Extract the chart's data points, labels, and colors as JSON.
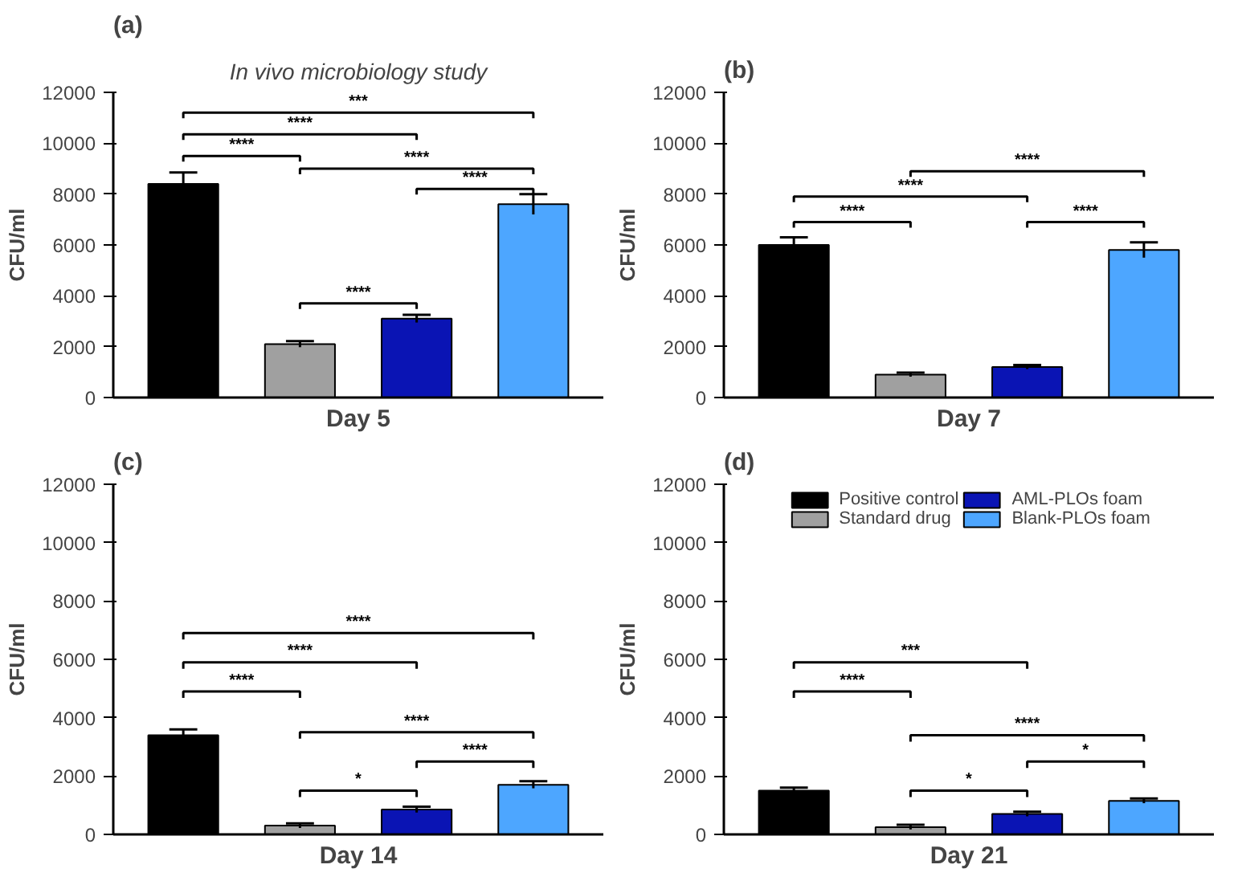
{
  "chart_data": [
    {
      "type": "bar",
      "title": "(a)",
      "subtitle": "In vivo microbiology study",
      "xlabel": "Day 5",
      "ylabel": "CFU/ml",
      "categories": [
        null,
        null,
        null,
        null
      ],
      "series": [
        {
          "color": "#000000",
          "values": [
            8400,
            null,
            null,
            null
          ],
          "errors": [
            450,
            null,
            null,
            null
          ]
        },
        {
          "color": "#a0a0a0",
          "values": [
            null,
            2100,
            null,
            null
          ],
          "errors": [
            null,
            120,
            null,
            null
          ]
        },
        {
          "color": "#0a14b4",
          "values": [
            null,
            null,
            3100,
            null
          ],
          "errors": [
            null,
            null,
            150,
            null
          ]
        },
        {
          "color": "#4da6ff",
          "values": [
            null,
            null,
            null,
            7600
          ],
          "errors": [
            null,
            null,
            null,
            400
          ]
        }
      ],
      "stacked": true,
      "tick_labels": "y",
      "ylim": [
        0,
        12000
      ],
      "yticks": [
        0,
        2000,
        4000,
        6000,
        8000,
        10000,
        12000
      ],
      "grid": false,
      "legend": false,
      "annotations": [
        "***",
        "****",
        "****",
        "****",
        "****",
        "****"
      ]
    },
    {
      "type": "bar",
      "title": "(b)",
      "xlabel": "Day 7",
      "ylabel": "CFU/ml",
      "categories": [
        null,
        null,
        null,
        null
      ],
      "series": [
        {
          "color": "#000000",
          "values": [
            6000,
            null,
            null,
            null
          ],
          "errors": [
            300,
            null,
            null,
            null
          ]
        },
        {
          "color": "#a0a0a0",
          "values": [
            null,
            900,
            null,
            null
          ],
          "errors": [
            null,
            80,
            null,
            null
          ]
        },
        {
          "color": "#0a14b4",
          "values": [
            null,
            null,
            1200,
            null
          ],
          "errors": [
            null,
            null,
            80,
            null
          ]
        },
        {
          "color": "#4da6ff",
          "values": [
            null,
            null,
            null,
            5800
          ],
          "errors": [
            null,
            null,
            null,
            300
          ]
        }
      ],
      "stacked": true,
      "tick_labels": "y",
      "ylim": [
        0,
        12000
      ],
      "yticks": [
        0,
        2000,
        4000,
        6000,
        8000,
        10000,
        12000
      ],
      "grid": false,
      "legend": false,
      "annotations": [
        "****",
        "****",
        "****",
        "****"
      ]
    },
    {
      "type": "bar",
      "title": "(c)",
      "xlabel": "Day 14",
      "ylabel": "CFU/ml",
      "categories": [
        null,
        null,
        null,
        null
      ],
      "series": [
        {
          "color": "#000000",
          "values": [
            3400,
            null,
            null,
            null
          ],
          "errors": [
            200,
            null,
            null,
            null
          ]
        },
        {
          "color": "#a0a0a0",
          "values": [
            null,
            300,
            null,
            null
          ],
          "errors": [
            null,
            80,
            null,
            null
          ]
        },
        {
          "color": "#0a14b4",
          "values": [
            null,
            null,
            850,
            null
          ],
          "errors": [
            null,
            null,
            100,
            null
          ]
        },
        {
          "color": "#4da6ff",
          "values": [
            null,
            null,
            null,
            1700
          ],
          "errors": [
            null,
            null,
            null,
            120
          ]
        }
      ],
      "stacked": true,
      "tick_labels": "y",
      "ylim": [
        0,
        12000
      ],
      "yticks": [
        0,
        2000,
        4000,
        6000,
        8000,
        10000,
        12000
      ],
      "grid": false,
      "legend": false,
      "annotations": [
        "****",
        "****",
        "****",
        "****",
        "****",
        "*"
      ]
    },
    {
      "type": "bar",
      "title": "(d)",
      "xlabel": "Day 21",
      "ylabel": "CFU/ml",
      "categories": [
        null,
        null,
        null,
        null
      ],
      "series": [
        {
          "name": "Positive control",
          "color": "#000000",
          "values": [
            1500,
            null,
            null,
            null
          ],
          "errors": [
            100,
            null,
            null,
            null
          ]
        },
        {
          "name": "Standard drug",
          "color": "#a0a0a0",
          "values": [
            null,
            250,
            null,
            null
          ],
          "errors": [
            null,
            80,
            null,
            null
          ]
        },
        {
          "name": "AML-PLOs foam",
          "color": "#0a14b4",
          "values": [
            null,
            null,
            700,
            null
          ],
          "errors": [
            null,
            null,
            80,
            null
          ]
        },
        {
          "name": "Blank-PLOs foam",
          "color": "#4da6ff",
          "values": [
            null,
            null,
            null,
            1150
          ],
          "errors": [
            null,
            null,
            null,
            80
          ]
        }
      ],
      "stacked": true,
      "tick_labels": "y",
      "ylim": [
        0,
        12000
      ],
      "yticks": [
        0,
        2000,
        4000,
        6000,
        8000,
        10000,
        12000
      ],
      "grid": false,
      "legend": "top",
      "annotations": [
        "***",
        "****",
        "****",
        "*",
        "*"
      ]
    }
  ]
}
